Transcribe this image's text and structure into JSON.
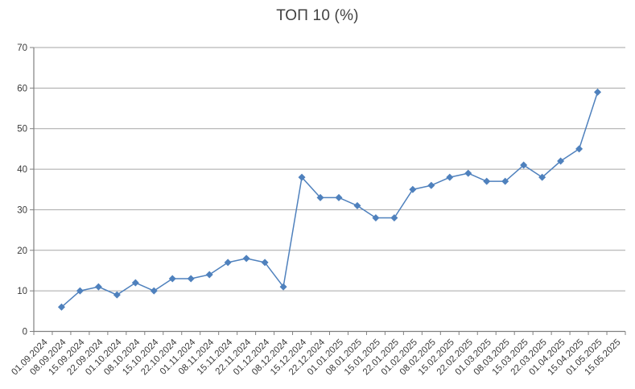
{
  "chart_data": {
    "type": "line",
    "title": "ТОП 10 (%)",
    "categories": [
      "01.09.2024",
      "08.09.2024",
      "15.09.2024",
      "22.09.2024",
      "01.10.2024",
      "08.10.2024",
      "15.10.2024",
      "22.10.2024",
      "01.11.2024",
      "08.11.2024",
      "15.11.2024",
      "22.11.2024",
      "01.12.2024",
      "08.12.2024",
      "15.12.2024",
      "22.12.2024",
      "01.01.2025",
      "08.01.2025",
      "15.01.2025",
      "22.01.2025",
      "01.02.2025",
      "08.02.2025",
      "15.02.2025",
      "22.02.2025",
      "01.03.2025",
      "08.03.2025",
      "15.03.2025",
      "22.03.2025",
      "01.04.2025",
      "15.04.2025",
      "01.05.2025",
      "15.05.2025"
    ],
    "values": [
      null,
      6,
      10,
      11,
      9,
      12,
      10,
      13,
      13,
      14,
      17,
      18,
      17,
      11,
      38,
      33,
      33,
      31,
      28,
      28,
      35,
      36,
      38,
      39,
      37,
      37,
      41,
      38,
      42,
      45,
      59,
      null
    ],
    "ylim": [
      0,
      70
    ],
    "ytick_interval": 10,
    "ytick_labels": [
      "0",
      "10",
      "20",
      "30",
      "40",
      "50",
      "60",
      "70"
    ],
    "xlabel": "",
    "ylabel": "",
    "x_label_rotation_deg": 45,
    "grid": "horizontal",
    "legend": "none",
    "marker": "diamond",
    "colors": {
      "series": "#4F81BD",
      "gridline": "#A6A6A6",
      "axis": "#808080",
      "labels": "#3A3A3A",
      "title": "#404040",
      "background": "#FFFFFF"
    }
  }
}
